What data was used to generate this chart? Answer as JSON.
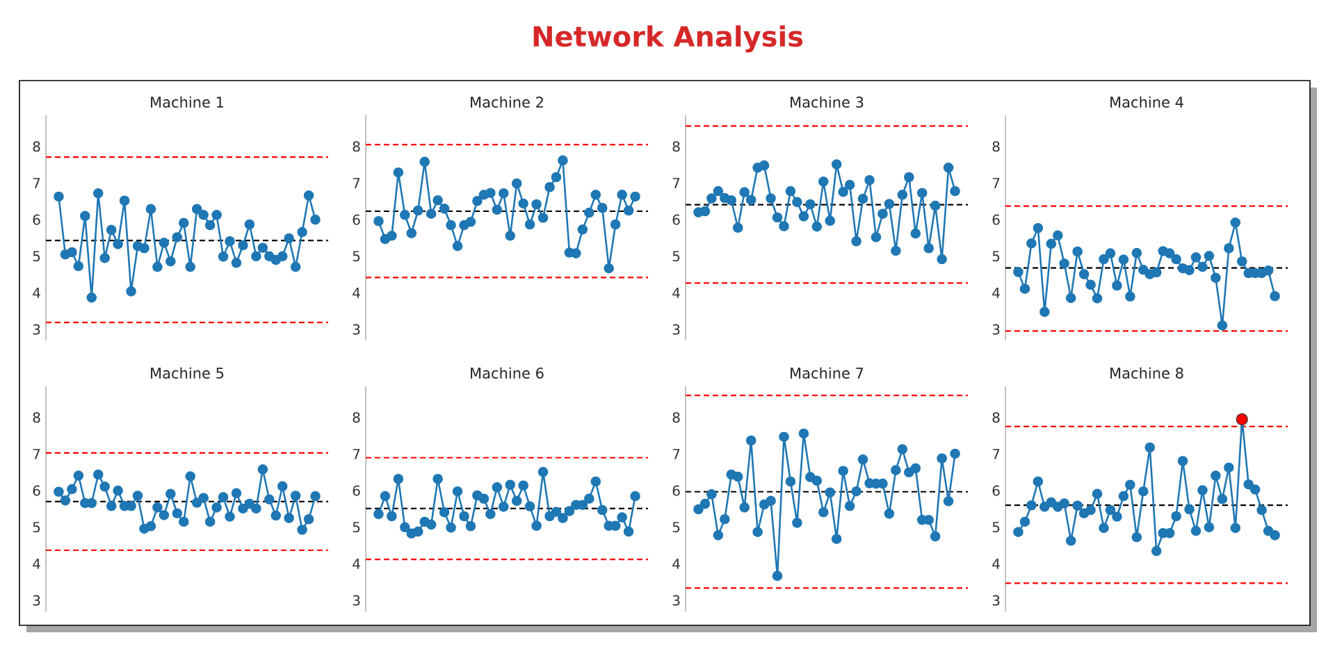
{
  "chart_data": [
    {
      "type": "line",
      "title": "Machine 1",
      "annotations": [
        "Network Analysis"
      ],
      "categories": [
        null,
        null,
        null,
        null,
        null,
        null,
        null,
        null,
        null,
        null,
        null,
        null,
        null,
        null,
        null,
        null,
        null,
        null,
        null,
        null,
        null,
        null,
        null,
        null,
        null,
        null,
        null,
        null,
        null,
        null,
        null,
        null,
        null,
        null,
        null,
        null,
        null,
        null,
        null,
        null
      ],
      "marker": "circle",
      "ylim": [
        2.7,
        8.85
      ],
      "yticks": [
        3,
        4,
        5,
        6,
        7,
        8
      ],
      "tick_labels": "y",
      "series": [
        {
          "color": "#1f77b4",
          "values": [
            6.63,
            5.05,
            5.11,
            4.73,
            6.1,
            3.87,
            6.72,
            4.95,
            5.72,
            5.33,
            6.52,
            4.04,
            5.28,
            5.22,
            6.29,
            4.71,
            5.37,
            4.86,
            5.52,
            5.91,
            4.71,
            6.29,
            6.13,
            5.85,
            6.13,
            4.99,
            5.41,
            4.82,
            5.3,
            5.87,
            5.0,
            5.23,
            5.0,
            4.9,
            5.0,
            5.49,
            4.71,
            5.66,
            6.66,
            6.0
          ]
        }
      ],
      "ref_lines": [
        {
          "axis": "y",
          "value": 5.43,
          "color": "#000000",
          "line_style": "dashed"
        },
        {
          "axis": "y",
          "value": 7.71,
          "color": "#ff0000",
          "line_style": "dashed"
        },
        {
          "axis": "y",
          "value": 3.19,
          "color": "#ff0000",
          "line_style": "dashed"
        }
      ]
    },
    {
      "type": "line",
      "title": "Machine 2",
      "categories": [
        null,
        null,
        null,
        null,
        null,
        null,
        null,
        null,
        null,
        null,
        null,
        null,
        null,
        null,
        null,
        null,
        null,
        null,
        null,
        null,
        null,
        null,
        null,
        null,
        null,
        null,
        null,
        null,
        null,
        null,
        null,
        null,
        null,
        null,
        null,
        null,
        null,
        null,
        null,
        null
      ],
      "marker": "circle",
      "ylim": [
        2.7,
        8.85
      ],
      "yticks": [
        3,
        4,
        5,
        6,
        7,
        8
      ],
      "tick_labels": "y",
      "series": [
        {
          "color": "#1f77b4",
          "values": [
            5.96,
            5.47,
            5.56,
            7.29,
            6.13,
            5.63,
            6.25,
            7.58,
            6.16,
            6.53,
            6.3,
            5.85,
            5.28,
            5.85,
            5.94,
            6.51,
            6.68,
            6.73,
            6.27,
            6.72,
            5.56,
            6.99,
            6.44,
            5.87,
            6.42,
            6.05,
            6.89,
            7.16,
            7.62,
            5.1,
            5.08,
            5.73,
            6.19,
            6.68,
            6.32,
            4.67,
            5.87,
            6.68,
            6.25,
            6.63
          ]
        }
      ],
      "ref_lines": [
        {
          "axis": "y",
          "value": 6.23,
          "color": "#000000",
          "line_style": "dashed"
        },
        {
          "axis": "y",
          "value": 8.05,
          "color": "#ff0000",
          "line_style": "dashed"
        },
        {
          "axis": "y",
          "value": 4.42,
          "color": "#ff0000",
          "line_style": "dashed"
        }
      ]
    },
    {
      "type": "line",
      "title": "Machine 3",
      "categories": [
        null,
        null,
        null,
        null,
        null,
        null,
        null,
        null,
        null,
        null,
        null,
        null,
        null,
        null,
        null,
        null,
        null,
        null,
        null,
        null,
        null,
        null,
        null,
        null,
        null,
        null,
        null,
        null,
        null,
        null,
        null,
        null,
        null,
        null,
        null,
        null,
        null,
        null,
        null,
        null
      ],
      "marker": "circle",
      "ylim": [
        2.7,
        8.85
      ],
      "yticks": [
        3,
        4,
        5,
        6,
        7,
        8
      ],
      "tick_labels": "y",
      "series": [
        {
          "color": "#1f77b4",
          "values": [
            6.2,
            6.23,
            6.58,
            6.78,
            6.59,
            6.53,
            5.78,
            6.75,
            6.54,
            7.42,
            7.48,
            6.58,
            6.06,
            5.82,
            6.78,
            6.48,
            6.09,
            6.42,
            5.81,
            7.04,
            5.97,
            7.51,
            6.76,
            6.95,
            5.41,
            6.57,
            7.08,
            5.52,
            6.16,
            6.43,
            5.15,
            6.68,
            7.16,
            5.62,
            6.73,
            5.22,
            6.38,
            4.92,
            7.42,
            6.78
          ]
        }
      ],
      "ref_lines": [
        {
          "axis": "y",
          "value": 6.41,
          "color": "#000000",
          "line_style": "dashed"
        },
        {
          "axis": "y",
          "value": 8.56,
          "color": "#ff0000",
          "line_style": "dashed"
        },
        {
          "axis": "y",
          "value": 4.27,
          "color": "#ff0000",
          "line_style": "dashed"
        }
      ]
    },
    {
      "type": "line",
      "title": "Machine 4",
      "categories": [
        null,
        null,
        null,
        null,
        null,
        null,
        null,
        null,
        null,
        null,
        null,
        null,
        null,
        null,
        null,
        null,
        null,
        null,
        null,
        null,
        null,
        null,
        null,
        null,
        null,
        null,
        null,
        null,
        null,
        null,
        null,
        null,
        null,
        null,
        null,
        null,
        null,
        null,
        null,
        null
      ],
      "marker": "circle",
      "ylim": [
        2.7,
        8.85
      ],
      "yticks": [
        3,
        4,
        5,
        6,
        7,
        8
      ],
      "tick_labels": "y",
      "series": [
        {
          "color": "#1f77b4",
          "values": [
            4.57,
            4.11,
            5.35,
            5.77,
            3.48,
            5.34,
            5.57,
            4.8,
            3.86,
            5.13,
            4.51,
            4.22,
            3.85,
            4.92,
            5.08,
            4.2,
            4.91,
            3.9,
            5.09,
            4.63,
            4.51,
            4.56,
            5.14,
            5.08,
            4.92,
            4.67,
            4.62,
            4.97,
            4.71,
            5.01,
            4.41,
            3.11,
            5.22,
            5.92,
            4.86,
            4.54,
            4.54,
            4.54,
            4.61,
            3.91
          ]
        }
      ],
      "ref_lines": [
        {
          "axis": "y",
          "value": 4.68,
          "color": "#000000",
          "line_style": "dashed"
        },
        {
          "axis": "y",
          "value": 6.37,
          "color": "#ff0000",
          "line_style": "dashed"
        },
        {
          "axis": "y",
          "value": 2.96,
          "color": "#ff0000",
          "line_style": "dashed"
        }
      ]
    },
    {
      "type": "line",
      "title": "Machine 5",
      "categories": [
        null,
        null,
        null,
        null,
        null,
        null,
        null,
        null,
        null,
        null,
        null,
        null,
        null,
        null,
        null,
        null,
        null,
        null,
        null,
        null,
        null,
        null,
        null,
        null,
        null,
        null,
        null,
        null,
        null,
        null,
        null,
        null,
        null,
        null,
        null,
        null,
        null,
        null,
        null,
        null
      ],
      "marker": "circle",
      "ylim": [
        2.7,
        8.85
      ],
      "yticks": [
        3,
        4,
        5,
        6,
        7,
        8
      ],
      "tick_labels": "y",
      "series": [
        {
          "color": "#1f77b4",
          "values": [
            5.97,
            5.73,
            6.04,
            6.41,
            5.66,
            5.66,
            6.44,
            6.11,
            5.58,
            6.0,
            5.58,
            5.58,
            5.86,
            4.96,
            5.03,
            5.54,
            5.33,
            5.91,
            5.38,
            5.15,
            6.39,
            5.67,
            5.8,
            5.15,
            5.54,
            5.82,
            5.29,
            5.93,
            5.51,
            5.64,
            5.51,
            6.58,
            5.76,
            5.32,
            6.12,
            5.25,
            5.86,
            4.93,
            5.22,
            5.85
          ]
        }
      ],
      "ref_lines": [
        {
          "axis": "y",
          "value": 5.7,
          "color": "#000000",
          "line_style": "dashed"
        },
        {
          "axis": "y",
          "value": 7.03,
          "color": "#ff0000",
          "line_style": "dashed"
        },
        {
          "axis": "y",
          "value": 4.37,
          "color": "#ff0000",
          "line_style": "dashed"
        }
      ]
    },
    {
      "type": "line",
      "title": "Machine 6",
      "categories": [
        null,
        null,
        null,
        null,
        null,
        null,
        null,
        null,
        null,
        null,
        null,
        null,
        null,
        null,
        null,
        null,
        null,
        null,
        null,
        null,
        null,
        null,
        null,
        null,
        null,
        null,
        null,
        null,
        null,
        null,
        null,
        null,
        null,
        null,
        null,
        null,
        null,
        null,
        null,
        null
      ],
      "marker": "circle",
      "ylim": [
        2.7,
        8.85
      ],
      "yticks": [
        3,
        4,
        5,
        6,
        7,
        8
      ],
      "tick_labels": "y",
      "series": [
        {
          "color": "#1f77b4",
          "values": [
            5.36,
            5.85,
            5.3,
            6.32,
            5.0,
            4.83,
            4.88,
            5.15,
            5.07,
            6.32,
            5.41,
            4.99,
            5.98,
            5.3,
            5.03,
            5.87,
            5.78,
            5.36,
            6.09,
            5.56,
            6.16,
            5.72,
            6.14,
            5.57,
            5.04,
            6.51,
            5.3,
            5.42,
            5.25,
            5.44,
            5.61,
            5.61,
            5.78,
            6.25,
            5.47,
            5.04,
            5.04,
            5.27,
            4.88,
            5.85
          ]
        }
      ],
      "ref_lines": [
        {
          "axis": "y",
          "value": 5.51,
          "color": "#000000",
          "line_style": "dashed"
        },
        {
          "axis": "y",
          "value": 6.9,
          "color": "#ff0000",
          "line_style": "dashed"
        },
        {
          "axis": "y",
          "value": 4.12,
          "color": "#ff0000",
          "line_style": "dashed"
        }
      ]
    },
    {
      "type": "line",
      "title": "Machine 7",
      "categories": [
        null,
        null,
        null,
        null,
        null,
        null,
        null,
        null,
        null,
        null,
        null,
        null,
        null,
        null,
        null,
        null,
        null,
        null,
        null,
        null,
        null,
        null,
        null,
        null,
        null,
        null,
        null,
        null,
        null,
        null,
        null,
        null,
        null,
        null,
        null,
        null,
        null,
        null,
        null,
        null
      ],
      "marker": "circle",
      "ylim": [
        2.7,
        8.85
      ],
      "yticks": [
        3,
        4,
        5,
        6,
        7,
        8
      ],
      "tick_labels": "y",
      "series": [
        {
          "color": "#1f77b4",
          "values": [
            5.49,
            5.64,
            5.9,
            4.78,
            5.22,
            6.44,
            6.38,
            5.54,
            7.37,
            4.87,
            5.62,
            5.72,
            3.67,
            7.47,
            6.25,
            5.12,
            7.56,
            6.37,
            6.27,
            5.41,
            5.95,
            4.68,
            6.54,
            5.58,
            5.98,
            6.85,
            6.2,
            6.19,
            6.19,
            5.37,
            6.56,
            7.13,
            6.5,
            6.61,
            5.2,
            5.2,
            4.75,
            6.88,
            5.71,
            7.01
          ]
        }
      ],
      "ref_lines": [
        {
          "axis": "y",
          "value": 5.97,
          "color": "#000000",
          "line_style": "dashed"
        },
        {
          "axis": "y",
          "value": 8.6,
          "color": "#ff0000",
          "line_style": "dashed"
        },
        {
          "axis": "y",
          "value": 3.34,
          "color": "#ff0000",
          "line_style": "dashed"
        }
      ]
    },
    {
      "type": "line",
      "title": "Machine 8",
      "categories": [
        null,
        null,
        null,
        null,
        null,
        null,
        null,
        null,
        null,
        null,
        null,
        null,
        null,
        null,
        null,
        null,
        null,
        null,
        null,
        null,
        null,
        null,
        null,
        null,
        null,
        null,
        null,
        null,
        null,
        null,
        null,
        null,
        null,
        null,
        null,
        null,
        null,
        null,
        null,
        null
      ],
      "marker": "circle",
      "ylim": [
        2.7,
        8.85
      ],
      "yticks": [
        3,
        4,
        5,
        6,
        7,
        8
      ],
      "tick_labels": "y",
      "series": [
        {
          "color": "#1f77b4",
          "values": [
            4.87,
            5.15,
            5.6,
            6.25,
            5.56,
            5.68,
            5.56,
            5.65,
            4.63,
            5.59,
            5.38,
            5.47,
            5.91,
            4.98,
            5.47,
            5.29,
            5.85,
            6.16,
            4.73,
            5.98,
            7.18,
            4.35,
            4.84,
            4.84,
            5.3,
            6.81,
            5.49,
            4.9,
            6.01,
            5.0,
            6.41,
            5.77,
            6.63,
            4.98,
            7.95,
            6.17,
            6.03,
            5.47,
            4.9,
            4.78
          ]
        },
        {
          "type": "scatter",
          "color": "#ff0000",
          "values": [
            null,
            null,
            null,
            null,
            null,
            null,
            null,
            null,
            null,
            null,
            null,
            null,
            null,
            null,
            null,
            null,
            null,
            null,
            null,
            null,
            null,
            null,
            null,
            null,
            null,
            null,
            null,
            null,
            null,
            null,
            null,
            null,
            null,
            null,
            7.95,
            null,
            null,
            null,
            null,
            null
          ]
        }
      ],
      "ref_lines": [
        {
          "axis": "y",
          "value": 5.6,
          "color": "#000000",
          "line_style": "dashed"
        },
        {
          "axis": "y",
          "value": 7.75,
          "color": "#ff0000",
          "line_style": "dashed"
        },
        {
          "axis": "y",
          "value": 3.47,
          "color": "#ff0000",
          "line_style": "dashed"
        }
      ]
    }
  ]
}
